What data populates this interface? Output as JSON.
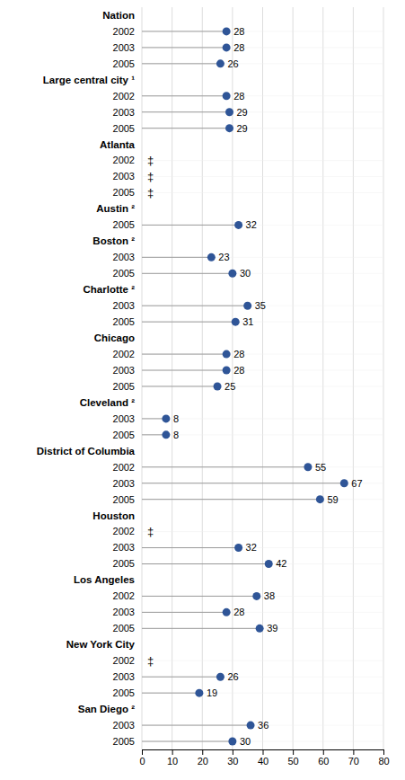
{
  "chart_data": {
    "type": "dot",
    "orientation": "horizontal",
    "color": "#2f5597",
    "grid": true,
    "data_labels": true,
    "xlim": [
      0,
      80
    ],
    "xticks": [
      0,
      10,
      20,
      30,
      40,
      50,
      60,
      70,
      80
    ],
    "groups": [
      {
        "name": "Nation",
        "categories": [
          "2002",
          "2003",
          "2005"
        ],
        "values": [
          28,
          28,
          26
        ],
        "value_labels": [
          "28",
          "28",
          "26"
        ]
      },
      {
        "name": "Large central city ¹",
        "categories": [
          "2002",
          "2003",
          "2005"
        ],
        "values": [
          28,
          29,
          29
        ],
        "value_labels": [
          "28",
          "29",
          "29"
        ]
      },
      {
        "name": "Atlanta",
        "categories": [
          "2002",
          "2003",
          "2005"
        ],
        "values": [
          null,
          null,
          null
        ],
        "value_labels": [
          "‡",
          "‡",
          "‡"
        ]
      },
      {
        "name": "Austin ²",
        "categories": [
          "2005"
        ],
        "values": [
          32
        ],
        "value_labels": [
          "32"
        ]
      },
      {
        "name": "Boston ²",
        "categories": [
          "2003",
          "2005"
        ],
        "values": [
          23,
          30
        ],
        "value_labels": [
          "23",
          "30"
        ]
      },
      {
        "name": "Charlotte ²",
        "categories": [
          "2003",
          "2005"
        ],
        "values": [
          35,
          31
        ],
        "value_labels": [
          "35",
          "31"
        ]
      },
      {
        "name": "Chicago",
        "categories": [
          "2002",
          "2003",
          "2005"
        ],
        "values": [
          28,
          28,
          25
        ],
        "value_labels": [
          "28",
          "28",
          "25"
        ]
      },
      {
        "name": "Cleveland ²",
        "categories": [
          "2003",
          "2005"
        ],
        "values": [
          8,
          8
        ],
        "value_labels": [
          "8",
          "8"
        ]
      },
      {
        "name": "District of Columbia",
        "categories": [
          "2002",
          "2003",
          "2005"
        ],
        "values": [
          55,
          67,
          59
        ],
        "value_labels": [
          "55",
          "67",
          "59"
        ]
      },
      {
        "name": "Houston",
        "categories": [
          "2002",
          "2003",
          "2005"
        ],
        "values": [
          null,
          32,
          42
        ],
        "value_labels": [
          "‡",
          "32",
          "42"
        ]
      },
      {
        "name": "Los Angeles",
        "categories": [
          "2002",
          "2003",
          "2005"
        ],
        "values": [
          38,
          28,
          39
        ],
        "value_labels": [
          "38",
          "28",
          "39"
        ]
      },
      {
        "name": "New York City",
        "categories": [
          "2002",
          "2003",
          "2005"
        ],
        "values": [
          null,
          26,
          19
        ],
        "value_labels": [
          "‡",
          "26",
          "19"
        ]
      },
      {
        "name": "San Diego ²",
        "categories": [
          "2003",
          "2005"
        ],
        "values": [
          36,
          30
        ],
        "value_labels": [
          "36",
          "30"
        ]
      }
    ]
  }
}
